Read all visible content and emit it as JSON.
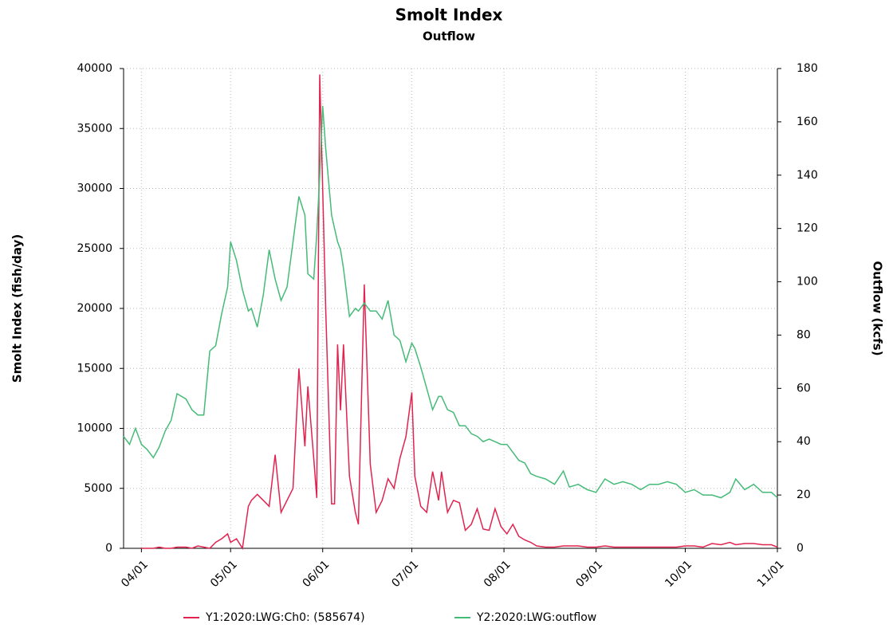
{
  "chart_data": {
    "type": "line",
    "title": "Smolt Index",
    "subtitle": "Outflow",
    "y_label": "Smolt Index (fish/day)",
    "y2_label": "Outflow (kcfs)",
    "x": [
      "03/26",
      "03/28",
      "03/30",
      "04/01",
      "04/03",
      "04/05",
      "04/07",
      "04/09",
      "04/11",
      "04/13",
      "04/16",
      "04/18",
      "04/20",
      "04/22",
      "04/24",
      "04/26",
      "04/28",
      "04/30",
      "05/01",
      "05/03",
      "05/05",
      "05/07",
      "05/08",
      "05/10",
      "05/12",
      "05/14",
      "05/16",
      "05/18",
      "05/20",
      "05/22",
      "05/24",
      "05/26",
      "05/27",
      "05/29",
      "05/30",
      "05/31",
      "06/01",
      "06/02",
      "06/04",
      "06/05",
      "06/06",
      "06/07",
      "06/08",
      "06/10",
      "06/12",
      "06/13",
      "06/15",
      "06/17",
      "06/19",
      "06/21",
      "06/23",
      "06/25",
      "06/27",
      "06/29",
      "07/01",
      "07/02",
      "07/04",
      "07/06",
      "07/08",
      "07/10",
      "07/11",
      "07/13",
      "07/15",
      "07/17",
      "07/19",
      "07/21",
      "07/23",
      "07/25",
      "07/27",
      "07/29",
      "07/31",
      "08/02",
      "08/04",
      "08/06",
      "08/08",
      "08/10",
      "08/12",
      "08/15",
      "08/18",
      "08/21",
      "08/23",
      "08/26",
      "08/29",
      "09/01",
      "09/04",
      "09/07",
      "09/10",
      "09/13",
      "09/16",
      "09/19",
      "09/22",
      "09/25",
      "09/28",
      "10/01",
      "10/04",
      "10/07",
      "10/10",
      "10/13",
      "10/16",
      "10/18",
      "10/21",
      "10/24",
      "10/27",
      "10/30",
      "11/01"
    ],
    "series": [
      {
        "name": "Y1:2020:LWG:Ch0: (585674)",
        "color": "#e0234f",
        "values": [
          null,
          null,
          null,
          0,
          0,
          0,
          100,
          0,
          0,
          100,
          100,
          0,
          200,
          100,
          0,
          500,
          800,
          1200,
          500,
          800,
          0,
          3500,
          4000,
          4500,
          4000,
          3500,
          7800,
          3000,
          4000,
          5000,
          15000,
          8500,
          13500,
          7500,
          4200,
          39500,
          30000,
          20000,
          3700,
          3700,
          17000,
          11500,
          17000,
          6000,
          3000,
          2000,
          22000,
          7000,
          3000,
          4000,
          5800,
          5000,
          7500,
          9300,
          13000,
          6000,
          3500,
          3000,
          6400,
          4000,
          6400,
          3000,
          4000,
          3800,
          1500,
          2000,
          3300,
          1600,
          1500,
          3300,
          1800,
          1200,
          2000,
          1000,
          700,
          500,
          200,
          100,
          100,
          200,
          200,
          200,
          100,
          100,
          200,
          100,
          100,
          100,
          100,
          100,
          100,
          100,
          100,
          200,
          200,
          100,
          400,
          300,
          500,
          300,
          400,
          400,
          300,
          300,
          100
        ]
      },
      {
        "name": "Y2:2020:LWG:outflow",
        "color": "#45bb78",
        "axis": "y2",
        "values": [
          42,
          39,
          45,
          39,
          37,
          34,
          38,
          44,
          48,
          58,
          56,
          52,
          50,
          50,
          74,
          76,
          88,
          98,
          115,
          108,
          97,
          89,
          90,
          83,
          95,
          112,
          101,
          93,
          98,
          115,
          132,
          125,
          103,
          101,
          118,
          140,
          166,
          150,
          125,
          120,
          115,
          112,
          105,
          87,
          90,
          89,
          92,
          89,
          89,
          86,
          93,
          80,
          78,
          70,
          77,
          75,
          68,
          60,
          52,
          57,
          57,
          52,
          51,
          46,
          46,
          43,
          42,
          40,
          41,
          40,
          39,
          39,
          36,
          33,
          32,
          28,
          27,
          26,
          24,
          29,
          23,
          24,
          22,
          21,
          26,
          24,
          25,
          24,
          22,
          24,
          24,
          25,
          24,
          21,
          22,
          20,
          20,
          19,
          21,
          26,
          22,
          24,
          21,
          21,
          19
        ]
      }
    ],
    "xlim": [
      "03/26",
      "11/01"
    ],
    "xticks": [
      "04/01",
      "05/01",
      "06/01",
      "07/01",
      "08/01",
      "09/01",
      "10/01",
      "11/01"
    ],
    "ylim": [
      0,
      40000
    ],
    "yticks": [
      0,
      5000,
      10000,
      15000,
      20000,
      25000,
      30000,
      35000,
      40000
    ],
    "y2lim": [
      0,
      180
    ],
    "y2ticks": [
      0,
      20,
      40,
      60,
      80,
      100,
      120,
      140,
      160,
      180
    ],
    "grid": true
  }
}
